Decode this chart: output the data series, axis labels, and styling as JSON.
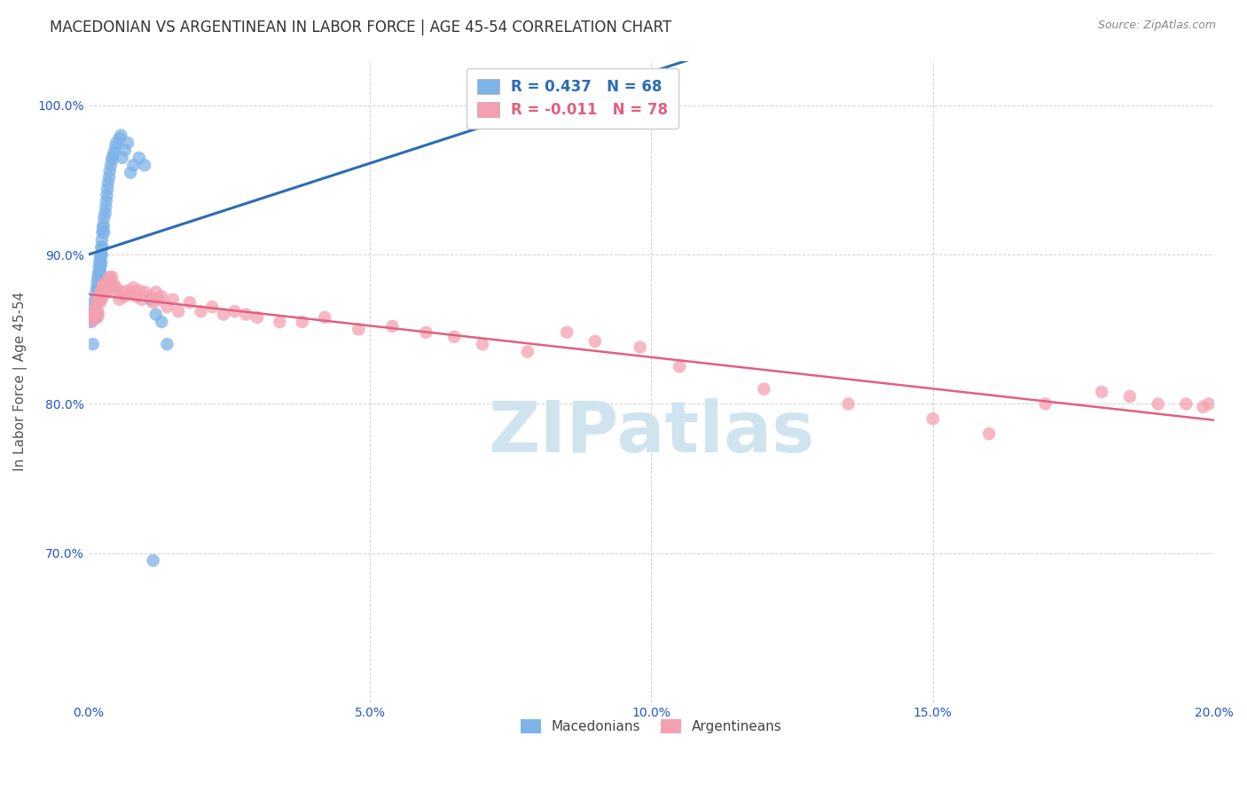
{
  "title": "MACEDONIAN VS ARGENTINEAN IN LABOR FORCE | AGE 45-54 CORRELATION CHART",
  "source": "Source: ZipAtlas.com",
  "ylabel": "In Labor Force | Age 45-54",
  "xlim": [
    0.0,
    0.2
  ],
  "ylim": [
    0.6,
    1.03
  ],
  "xticks": [
    0.0,
    0.05,
    0.1,
    0.15,
    0.2
  ],
  "yticks": [
    0.7,
    0.8,
    0.9,
    1.0
  ],
  "ytick_labels": [
    "70.0%",
    "80.0%",
    "90.0%",
    "100.0%"
  ],
  "xtick_labels": [
    "0.0%",
    "5.0%",
    "10.0%",
    "15.0%",
    "20.0%"
  ],
  "legend_blue_label": "R = 0.437   N = 68",
  "legend_pink_label": "R = -0.011   N = 78",
  "macedonian_label": "Macedonians",
  "argentinean_label": "Argentineans",
  "blue_color": "#7EB3E8",
  "pink_color": "#F4A0B0",
  "blue_line_color": "#2B6CB5",
  "pink_line_color": "#E06080",
  "watermark_color": "#D0E4F0",
  "title_fontsize": 12,
  "axis_label_fontsize": 11,
  "tick_fontsize": 10,
  "blue_dots_x": [
    0.0005,
    0.0005,
    0.0008,
    0.001,
    0.001,
    0.0012,
    0.0012,
    0.0013,
    0.0013,
    0.0014,
    0.0014,
    0.0015,
    0.0015,
    0.0015,
    0.0016,
    0.0016,
    0.0017,
    0.0017,
    0.0018,
    0.0018,
    0.0018,
    0.0019,
    0.0019,
    0.002,
    0.002,
    0.002,
    0.0021,
    0.0021,
    0.0022,
    0.0022,
    0.0023,
    0.0023,
    0.0024,
    0.0024,
    0.0025,
    0.0025,
    0.0026,
    0.0027,
    0.0028,
    0.0028,
    0.003,
    0.0031,
    0.0032,
    0.0033,
    0.0034,
    0.0035,
    0.0037,
    0.0038,
    0.004,
    0.0042,
    0.0043,
    0.0045,
    0.0048,
    0.005,
    0.0055,
    0.0058,
    0.006,
    0.0065,
    0.007,
    0.0075,
    0.008,
    0.009,
    0.01,
    0.011,
    0.0115,
    0.012,
    0.013,
    0.014
  ],
  "blue_dots_y": [
    0.86,
    0.855,
    0.84,
    0.865,
    0.858,
    0.87,
    0.862,
    0.868,
    0.858,
    0.875,
    0.862,
    0.878,
    0.868,
    0.858,
    0.882,
    0.87,
    0.885,
    0.878,
    0.888,
    0.878,
    0.87,
    0.892,
    0.88,
    0.895,
    0.888,
    0.878,
    0.898,
    0.888,
    0.9,
    0.892,
    0.905,
    0.895,
    0.91,
    0.9,
    0.915,
    0.905,
    0.918,
    0.92,
    0.925,
    0.915,
    0.928,
    0.932,
    0.936,
    0.94,
    0.944,
    0.948,
    0.952,
    0.956,
    0.96,
    0.964,
    0.965,
    0.968,
    0.972,
    0.975,
    0.978,
    0.98,
    0.965,
    0.97,
    0.975,
    0.955,
    0.96,
    0.965,
    0.96,
    0.87,
    0.695,
    0.86,
    0.855,
    0.84
  ],
  "pink_dots_x": [
    0.0005,
    0.0008,
    0.001,
    0.0012,
    0.0013,
    0.0015,
    0.0015,
    0.0016,
    0.0018,
    0.0018,
    0.002,
    0.0021,
    0.0022,
    0.0023,
    0.0024,
    0.0025,
    0.0026,
    0.0027,
    0.0028,
    0.003,
    0.0032,
    0.0033,
    0.0035,
    0.0038,
    0.004,
    0.0042,
    0.0045,
    0.0048,
    0.005,
    0.0055,
    0.006,
    0.0065,
    0.007,
    0.0075,
    0.008,
    0.0085,
    0.009,
    0.0095,
    0.01,
    0.011,
    0.0115,
    0.012,
    0.0125,
    0.013,
    0.014,
    0.015,
    0.016,
    0.018,
    0.02,
    0.022,
    0.024,
    0.026,
    0.028,
    0.03,
    0.034,
    0.038,
    0.042,
    0.048,
    0.054,
    0.06,
    0.065,
    0.07,
    0.078,
    0.085,
    0.09,
    0.098,
    0.105,
    0.12,
    0.135,
    0.15,
    0.16,
    0.17,
    0.18,
    0.185,
    0.19,
    0.195,
    0.198,
    0.199
  ],
  "pink_dots_y": [
    0.858,
    0.856,
    0.862,
    0.86,
    0.864,
    0.868,
    0.858,
    0.862,
    0.87,
    0.86,
    0.872,
    0.868,
    0.875,
    0.87,
    0.875,
    0.878,
    0.872,
    0.88,
    0.875,
    0.88,
    0.875,
    0.882,
    0.88,
    0.885,
    0.882,
    0.885,
    0.88,
    0.875,
    0.878,
    0.87,
    0.875,
    0.872,
    0.876,
    0.874,
    0.878,
    0.872,
    0.876,
    0.87,
    0.875,
    0.872,
    0.868,
    0.875,
    0.87,
    0.872,
    0.865,
    0.87,
    0.862,
    0.868,
    0.862,
    0.865,
    0.86,
    0.862,
    0.86,
    0.858,
    0.855,
    0.855,
    0.858,
    0.85,
    0.852,
    0.848,
    0.845,
    0.84,
    0.835,
    0.848,
    0.842,
    0.838,
    0.825,
    0.81,
    0.8,
    0.79,
    0.78,
    0.8,
    0.808,
    0.805,
    0.8,
    0.8,
    0.798,
    0.8
  ]
}
